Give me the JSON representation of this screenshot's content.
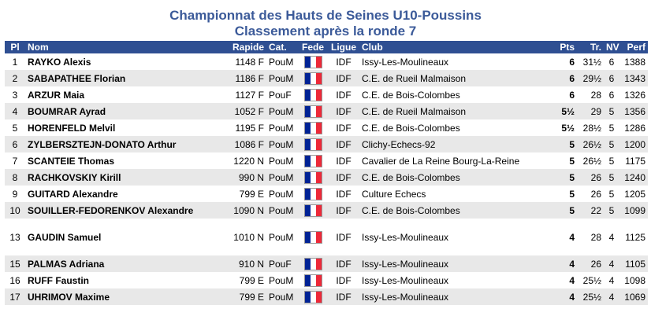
{
  "header": {
    "title": "Championnat des Hauts de Seines U10-Poussins",
    "subtitle": "Classement après la ronde 7"
  },
  "columns": {
    "pl": "Pl",
    "nom": "Nom",
    "rapide": "Rapide",
    "cat": "Cat.",
    "fede": "Fede",
    "ligue": "Ligue",
    "club": "Club",
    "pts": "Pts",
    "tr": "Tr.",
    "nv": "NV",
    "perf": "Perf"
  },
  "flag": {
    "icon": "france-flag-icon",
    "colors": [
      "#002395",
      "#ffffff",
      "#ed2939"
    ]
  },
  "rows": [
    {
      "pl": "1",
      "nom": "RAYKO Alexis",
      "rapide": "1148 F",
      "cat": "PouM",
      "ligue": "IDF",
      "club": "Issy-Les-Moulineaux",
      "pts": "6",
      "tr": "31½",
      "nv": "6",
      "perf": "1388"
    },
    {
      "pl": "2",
      "nom": "SABAPATHEE Florian",
      "rapide": "1186 F",
      "cat": "PouM",
      "ligue": "IDF",
      "club": "C.E. de Rueil Malmaison",
      "pts": "6",
      "tr": "29½",
      "nv": "6",
      "perf": "1343"
    },
    {
      "pl": "3",
      "nom": "ARZUR Maia",
      "rapide": "1127 F",
      "cat": "PouF",
      "ligue": "IDF",
      "club": "C.E. de Bois-Colombes",
      "pts": "6",
      "tr": "28",
      "nv": "6",
      "perf": "1326"
    },
    {
      "pl": "4",
      "nom": "BOUMRAR Ayrad",
      "rapide": "1052 F",
      "cat": "PouM",
      "ligue": "IDF",
      "club": "C.E. de Rueil Malmaison",
      "pts": "5½",
      "tr": "29",
      "nv": "5",
      "perf": "1356"
    },
    {
      "pl": "5",
      "nom": "HORENFELD Melvil",
      "rapide": "1195 F",
      "cat": "PouM",
      "ligue": "IDF",
      "club": "C.E. de Bois-Colombes",
      "pts": "5½",
      "tr": "28½",
      "nv": "5",
      "perf": "1286"
    },
    {
      "pl": "6",
      "nom": "ZYLBERSZTEJN-DONATO Arthur",
      "rapide": "1086 F",
      "cat": "PouM",
      "ligue": "IDF",
      "club": "Clichy-Echecs-92",
      "pts": "5",
      "tr": "26½",
      "nv": "5",
      "perf": "1200"
    },
    {
      "pl": "7",
      "nom": "SCANTEIE Thomas",
      "rapide": "1220 N",
      "cat": "PouM",
      "ligue": "IDF",
      "club": "Cavalier de La Reine Bourg-La-Reine",
      "pts": "5",
      "tr": "26½",
      "nv": "5",
      "perf": "1175"
    },
    {
      "pl": "8",
      "nom": "RACHKOVSKIY Kirill",
      "rapide": "990 N",
      "cat": "PouM",
      "ligue": "IDF",
      "club": "C.E. de Bois-Colombes",
      "pts": "5",
      "tr": "26",
      "nv": "5",
      "perf": "1240"
    },
    {
      "pl": "9",
      "nom": "GUITARD Alexandre",
      "rapide": "799 E",
      "cat": "PouM",
      "ligue": "IDF",
      "club": "Culture Echecs",
      "pts": "5",
      "tr": "26",
      "nv": "5",
      "perf": "1205"
    },
    {
      "pl": "10",
      "nom": "SOUILLER-FEDORENKOV Alexandre",
      "rapide": "1090 N",
      "cat": "PouM",
      "ligue": "IDF",
      "club": "C.E. de Bois-Colombes",
      "pts": "5",
      "tr": "22",
      "nv": "5",
      "perf": "1099"
    },
    {
      "gap": true
    },
    {
      "pl": "13",
      "nom": "GAUDIN Samuel",
      "rapide": "1010 N",
      "cat": "PouM",
      "ligue": "IDF",
      "club": "Issy-Les-Moulineaux",
      "pts": "4",
      "tr": "28",
      "nv": "4",
      "perf": "1125"
    },
    {
      "gap": true
    },
    {
      "pl": "15",
      "nom": "PALMAS Adriana",
      "rapide": "910 N",
      "cat": "PouF",
      "ligue": "IDF",
      "club": "Issy-Les-Moulineaux",
      "pts": "4",
      "tr": "26",
      "nv": "4",
      "perf": "1105"
    },
    {
      "pl": "16",
      "nom": "RUFF Faustin",
      "rapide": "799 E",
      "cat": "PouM",
      "ligue": "IDF",
      "club": "Issy-Les-Moulineaux",
      "pts": "4",
      "tr": "25½",
      "nv": "4",
      "perf": "1098"
    },
    {
      "pl": "17",
      "nom": "UHRIMOV Maxime",
      "rapide": "799 E",
      "cat": "PouM",
      "ligue": "IDF",
      "club": "Issy-Les-Moulineaux",
      "pts": "4",
      "tr": "25½",
      "nv": "4",
      "perf": "1069"
    }
  ]
}
